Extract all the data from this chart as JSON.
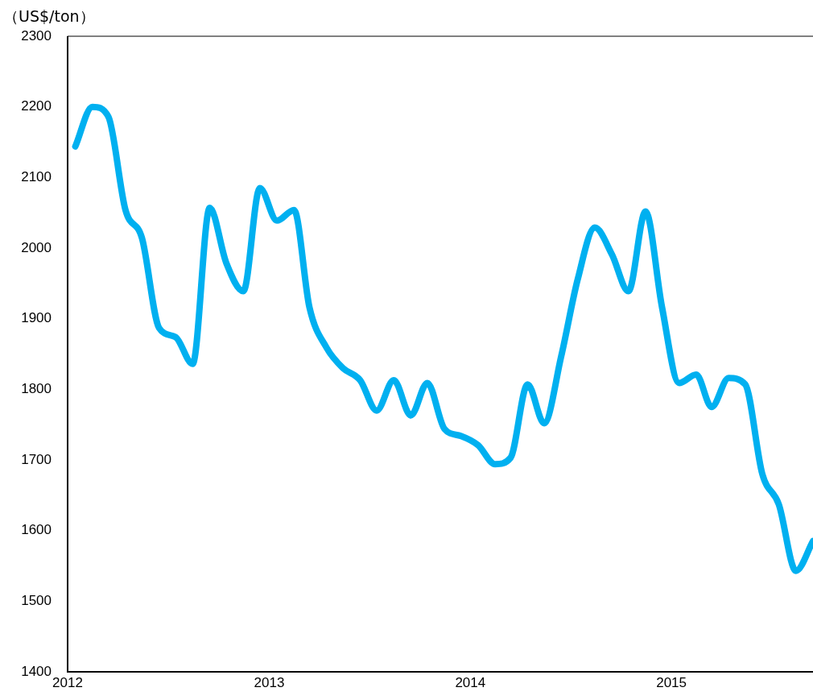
{
  "chart_data": {
    "type": "line",
    "ylabel": "（US$/ton）",
    "x": [
      "2012-01-15",
      "2012-02-15",
      "2012-03-15",
      "2012-04-15",
      "2012-05-15",
      "2012-06-15",
      "2012-07-15",
      "2012-08-15",
      "2012-09-15",
      "2012-10-15",
      "2012-11-15",
      "2012-12-15",
      "2013-01-15",
      "2013-02-15",
      "2013-03-15",
      "2013-04-15",
      "2013-05-15",
      "2013-06-15",
      "2013-07-15",
      "2013-08-15",
      "2013-09-15",
      "2013-10-15",
      "2013-11-15",
      "2013-12-15",
      "2014-01-15",
      "2014-02-15",
      "2014-03-15",
      "2014-04-15",
      "2014-05-15",
      "2014-06-15",
      "2014-07-15",
      "2014-08-15",
      "2014-09-15",
      "2014-10-15",
      "2014-11-15",
      "2014-12-15",
      "2015-01-15",
      "2015-02-15",
      "2015-03-15",
      "2015-04-15",
      "2015-05-15",
      "2015-06-15",
      "2015-07-15",
      "2015-08-15",
      "2015-09-15"
    ],
    "series": [
      {
        "color": "#00b0f0",
        "values": [
          2144,
          2200,
          2186,
          2054,
          2014,
          1887,
          1874,
          1836,
          2057,
          1979,
          1939,
          2085,
          2039,
          2054,
          1916,
          1859,
          1830,
          1813,
          1770,
          1813,
          1763,
          1809,
          1744,
          1734,
          1721,
          1694,
          1703,
          1807,
          1752,
          1847,
          1956,
          2029,
          1991,
          1939,
          2052,
          1916,
          1809,
          1821,
          1775,
          1816,
          1807,
          1680,
          1637,
          1543,
          1585
        ]
      }
    ],
    "xlim": [
      "2012",
      "2015-09-15"
    ],
    "xticks": [
      "2012",
      "2013",
      "2014",
      "2015"
    ],
    "ylim": [
      1400,
      2300
    ],
    "yticks": [
      1400,
      1500,
      1600,
      1700,
      1800,
      1900,
      2000,
      2100,
      2200,
      2300
    ],
    "grid": false,
    "legend": false,
    "marker": "none",
    "line_style": "solid"
  }
}
